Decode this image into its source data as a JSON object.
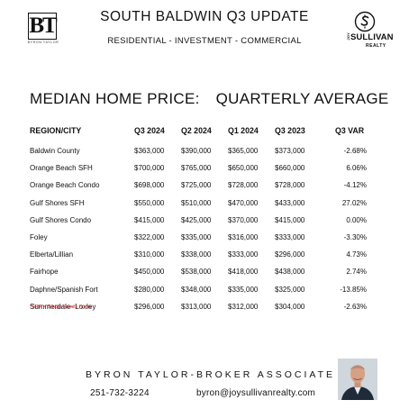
{
  "header": {
    "title": "SOUTH BALDWIN Q3  UPDATE",
    "subtitle": "RESIDENTIAL - INVESTMENT - COMMERCIAL",
    "left_logo": {
      "mark": "BT",
      "caption": "BYRON TAYLOR"
    },
    "right_logo": {
      "side": "JOY",
      "line1": "SULLIVAN",
      "realty": "REALTY"
    }
  },
  "section": {
    "heading_left": "MEDIAN HOME PRICE:",
    "heading_right": "QUARTERLY AVERAGE"
  },
  "table": {
    "columns": [
      "REGION/CITY",
      "Q3 2024",
      "Q2 2024",
      "Q1 2024",
      "Q3 2023",
      "Q3  VAR"
    ],
    "rows": [
      [
        "Baldwin County",
        "$363,000",
        "$390,000",
        "$365,000",
        "$373,000",
        "-2.68%"
      ],
      [
        "Orange Beach SFH",
        "$700,000",
        "$765,000",
        "$650,000",
        "$660,000",
        "6.06%"
      ],
      [
        "Orange Beach Condo",
        "$698,000",
        "$725,000",
        "$728,000",
        "$728,000",
        "-4.12%"
      ],
      [
        "Gulf Shores SFH",
        "$550,000",
        "$510,000",
        "$470,000",
        "$433,000",
        "27.02%"
      ],
      [
        "Gulf Shores Condo",
        "$415,000",
        "$425,000",
        "$370,000",
        "$415,000",
        "0.00%"
      ],
      [
        "Foley",
        "$322,000",
        "$335,000",
        "$316,000",
        "$333,000",
        "-3.30%"
      ],
      [
        "Elberta/Lillian",
        "$310,000",
        "$338,000",
        "$333,000",
        "$296,000",
        "4.73%"
      ],
      [
        "Fairhope",
        "$450,000",
        "$538,000",
        "$418,000",
        "$438,000",
        "2.74%"
      ],
      [
        "Daphne/Spanish Fort",
        "$280,000",
        "$348,000",
        "$335,000",
        "$325,000",
        "-13.85%"
      ],
      [
        "Summerdale- Loxley",
        "$296,000",
        "$313,000",
        "$312,000",
        "$304,000",
        "-2.63%"
      ]
    ],
    "footnote": "*SFH = Single Family home"
  },
  "footer": {
    "broker": "BYRON TAYLOR-BROKER ASSOCIATE",
    "phone": "251-732-3224",
    "email": "byron@joysullivanrealty.com"
  },
  "colors": {
    "text": "#111111",
    "footnote": "#e02020",
    "background": "#ffffff"
  },
  "icons": {
    "right_logo_emblem": "swirl-s-emblem-icon",
    "avatar": "broker-portrait"
  }
}
